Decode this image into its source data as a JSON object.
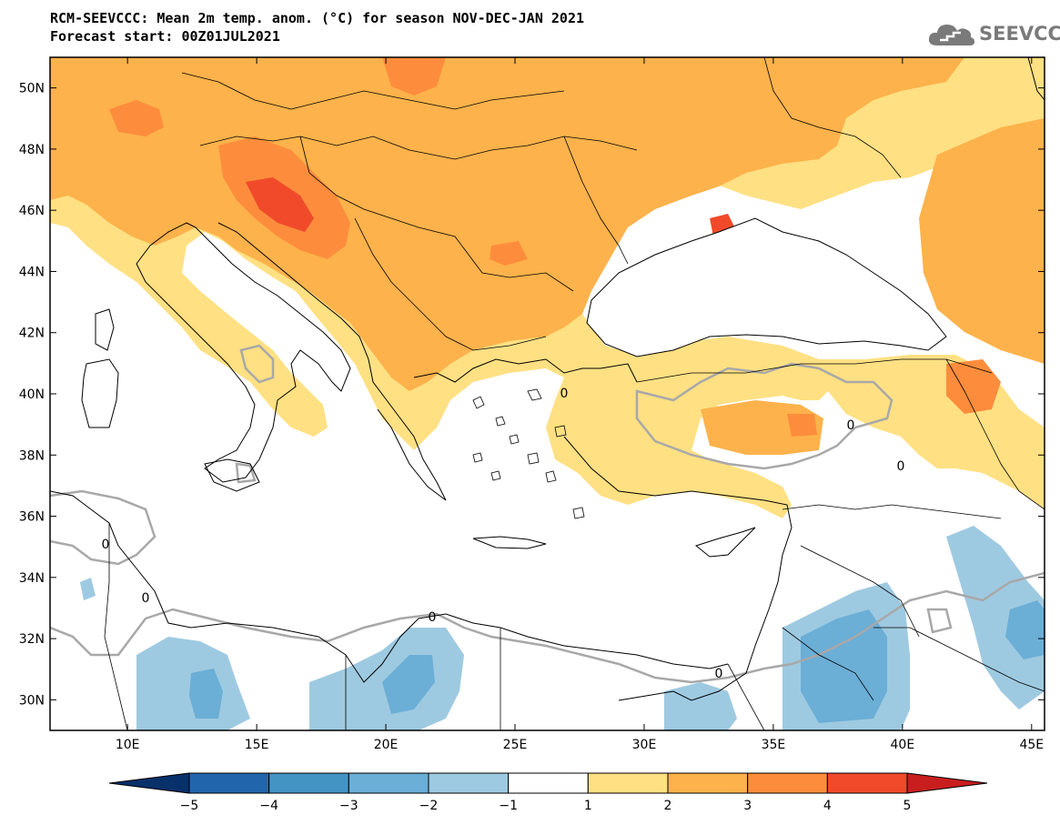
{
  "title": {
    "line1": "RCM-SEEVCCC: Mean 2m temp. anom. (°C) for season NOV-DEC-JAN 2021",
    "line2": "Forecast start: 00Z01JUL2021"
  },
  "logo": {
    "text": "SEEVCCC",
    "icon": "cloud-icon",
    "color": "#7a7a7a"
  },
  "map": {
    "lon_range": [
      7,
      45.5
    ],
    "lat_range": [
      29,
      51
    ],
    "lat_ticks": [
      {
        "value": 30,
        "label": "30N"
      },
      {
        "value": 32,
        "label": "32N"
      },
      {
        "value": 34,
        "label": "34N"
      },
      {
        "value": 36,
        "label": "36N"
      },
      {
        "value": 38,
        "label": "38N"
      },
      {
        "value": 40,
        "label": "40N"
      },
      {
        "value": 42,
        "label": "42N"
      },
      {
        "value": 44,
        "label": "44N"
      },
      {
        "value": 46,
        "label": "46N"
      },
      {
        "value": 48,
        "label": "48N"
      },
      {
        "value": 50,
        "label": "50N"
      }
    ],
    "lon_ticks": [
      {
        "value": 10,
        "label": "10E"
      },
      {
        "value": 15,
        "label": "15E"
      },
      {
        "value": 20,
        "label": "20E"
      },
      {
        "value": 25,
        "label": "25E"
      },
      {
        "value": 30,
        "label": "30E"
      },
      {
        "value": 35,
        "label": "35E"
      },
      {
        "value": 40,
        "label": "40E"
      },
      {
        "value": 45,
        "label": "45E"
      }
    ],
    "contour_label": "0"
  },
  "colorbar": {
    "levels": [
      "−5",
      "−4",
      "−3",
      "−2",
      "−1",
      "1",
      "2",
      "3",
      "4",
      "5"
    ],
    "colors": [
      "#08306b",
      "#2166ac",
      "#4393c3",
      "#6baed6",
      "#9ecae1",
      "#ffffff",
      "#ffe083",
      "#fdb24b",
      "#fd8d3c",
      "#f14a2a",
      "#c81e1e"
    ]
  }
}
